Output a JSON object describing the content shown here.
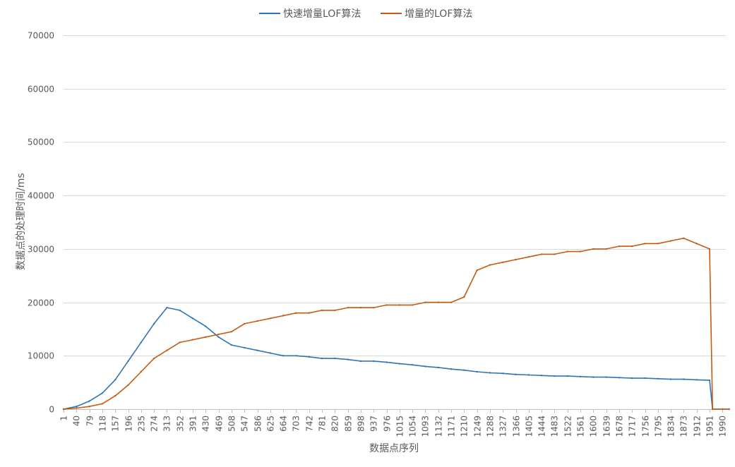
{
  "chart_data": {
    "type": "line",
    "title": "",
    "xlabel": "数据点序列",
    "ylabel": "数据点的处理时间/ms",
    "ylim": [
      0,
      70000
    ],
    "y_ticks": [
      "0",
      "10000",
      "20000",
      "30000",
      "40000",
      "50000",
      "60000",
      "70000"
    ],
    "x_range": [
      1,
      2000
    ],
    "x_ticks": [
      "1",
      "40",
      "79",
      "118",
      "157",
      "196",
      "235",
      "274",
      "313",
      "352",
      "391",
      "430",
      "469",
      "508",
      "547",
      "586",
      "625",
      "664",
      "703",
      "742",
      "781",
      "820",
      "859",
      "898",
      "937",
      "976",
      "1015",
      "1054",
      "1093",
      "1132",
      "1171",
      "1210",
      "1249",
      "1288",
      "1327",
      "1366",
      "1405",
      "1444",
      "1483",
      "1522",
      "1561",
      "1600",
      "1639",
      "1678",
      "1717",
      "1756",
      "1795",
      "1834",
      "1873",
      "1912",
      "1951",
      "1990"
    ],
    "grid": true,
    "legend_position": "top",
    "series": [
      {
        "name": "快速增量LOF算法",
        "color": "#2e75b6",
        "x": [
          1,
          40,
          79,
          118,
          157,
          196,
          235,
          274,
          313,
          352,
          391,
          430,
          469,
          508,
          547,
          586,
          625,
          664,
          703,
          742,
          781,
          820,
          859,
          898,
          937,
          976,
          1015,
          1054,
          1093,
          1132,
          1171,
          1210,
          1249,
          1288,
          1327,
          1366,
          1405,
          1444,
          1483,
          1522,
          1561,
          1600,
          1639,
          1678,
          1717,
          1756,
          1795,
          1834,
          1873,
          1912,
          1951,
          1960,
          1990,
          2010
        ],
        "values": [
          0,
          500,
          1500,
          3000,
          5500,
          9000,
          12500,
          16000,
          19000,
          18500,
          17000,
          15500,
          13500,
          12000,
          11500,
          11000,
          10500,
          10000,
          10000,
          9800,
          9500,
          9500,
          9300,
          9000,
          9000,
          8800,
          8500,
          8300,
          8000,
          7800,
          7500,
          7300,
          7000,
          6800,
          6700,
          6500,
          6400,
          6300,
          6200,
          6200,
          6100,
          6000,
          6000,
          5900,
          5800,
          5800,
          5700,
          5600,
          5600,
          5500,
          5400,
          0,
          0,
          0
        ]
      },
      {
        "name": "增量的LOF算法",
        "color": "#c55a11",
        "x": [
          1,
          40,
          79,
          118,
          157,
          196,
          235,
          274,
          313,
          352,
          391,
          430,
          469,
          508,
          547,
          586,
          625,
          664,
          703,
          742,
          781,
          820,
          859,
          898,
          937,
          976,
          1015,
          1054,
          1093,
          1132,
          1171,
          1210,
          1249,
          1288,
          1327,
          1366,
          1405,
          1444,
          1483,
          1522,
          1561,
          1600,
          1639,
          1678,
          1717,
          1756,
          1795,
          1834,
          1873,
          1912,
          1951,
          1960,
          1990,
          2010
        ],
        "values": [
          0,
          200,
          500,
          1000,
          2500,
          4500,
          7000,
          9500,
          11000,
          12500,
          13000,
          13500,
          14000,
          14500,
          16000,
          16500,
          17000,
          17500,
          18000,
          18000,
          18500,
          18500,
          19000,
          19000,
          19000,
          19500,
          19500,
          19500,
          20000,
          20000,
          20000,
          21000,
          26000,
          27000,
          27500,
          28000,
          28500,
          29000,
          29000,
          29500,
          29500,
          30000,
          30000,
          30500,
          30500,
          31000,
          31000,
          31500,
          32000,
          31000,
          30000,
          0,
          0,
          0
        ]
      }
    ]
  }
}
